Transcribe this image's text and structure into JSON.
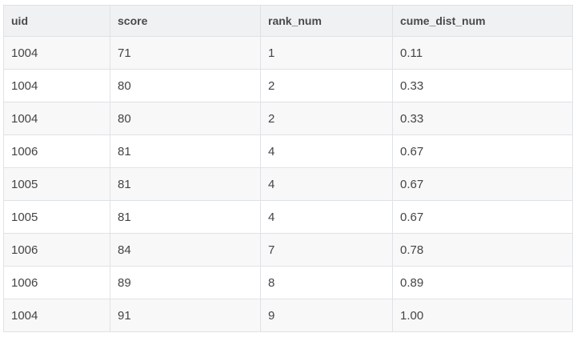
{
  "table": {
    "columns": [
      "uid",
      "score",
      "rank_num",
      "cume_dist_num"
    ],
    "rows": [
      [
        "1004",
        "71",
        "1",
        "0.11"
      ],
      [
        "1004",
        "80",
        "2",
        "0.33"
      ],
      [
        "1004",
        "80",
        "2",
        "0.33"
      ],
      [
        "1006",
        "81",
        "4",
        "0.67"
      ],
      [
        "1005",
        "81",
        "4",
        "0.67"
      ],
      [
        "1005",
        "81",
        "4",
        "0.67"
      ],
      [
        "1006",
        "84",
        "7",
        "0.78"
      ],
      [
        "1006",
        "89",
        "8",
        "0.89"
      ],
      [
        "1004",
        "91",
        "9",
        "1.00"
      ]
    ]
  }
}
